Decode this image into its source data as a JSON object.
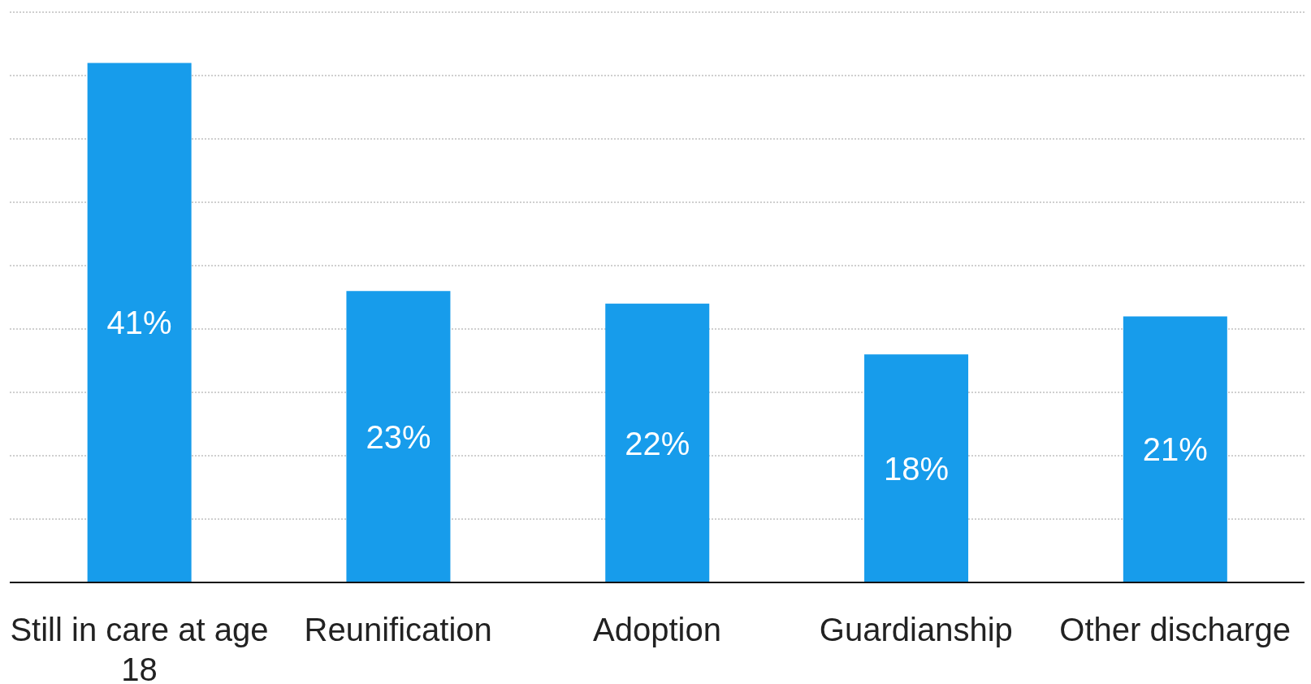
{
  "chart_data": {
    "type": "bar",
    "categories": [
      "Still in care at age 18",
      "Reunification",
      "Adoption",
      "Guardianship",
      "Other discharge"
    ],
    "values": [
      41,
      23,
      22,
      18,
      21
    ],
    "value_labels": [
      "41%",
      "23%",
      "22%",
      "18%",
      "21%"
    ],
    "color": "#179ceb",
    "ylim": [
      0,
      45
    ],
    "yticks": [
      {
        "value": 5,
        "label": null
      },
      {
        "value": 10,
        "label": null
      },
      {
        "value": 15,
        "label": null
      },
      {
        "value": 20,
        "label": null
      },
      {
        "value": 25,
        "label": null
      },
      {
        "value": 30,
        "label": null
      },
      {
        "value": 35,
        "label": null
      },
      {
        "value": 40,
        "label": null
      },
      {
        "value": 45,
        "label": null
      }
    ],
    "tick_labels": "x",
    "grid": "y"
  }
}
